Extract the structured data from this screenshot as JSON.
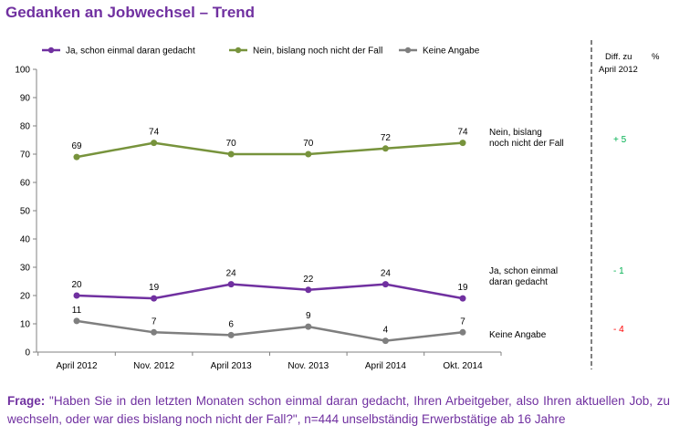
{
  "title": "Gedanken an Jobwechsel – Trend",
  "chart_data": {
    "type": "line",
    "title": "Gedanken an Jobwechsel – Trend",
    "categories": [
      "April 2012",
      "Nov. 2012",
      "April 2013",
      "Nov. 2013",
      "April 2014",
      "Okt. 2014"
    ],
    "ylim": [
      0,
      100
    ],
    "yticks": [
      0,
      10,
      20,
      30,
      40,
      50,
      60,
      70,
      80,
      90,
      100
    ],
    "grid": false,
    "legend_position": "top",
    "series": [
      {
        "name": "Ja, schon einmal daran gedacht",
        "end_label": [
          "Ja, schon einmal",
          "daran gedacht"
        ],
        "values": [
          20,
          19,
          24,
          22,
          24,
          19
        ],
        "color": "#7030a0",
        "diff": "- 1",
        "diff_color": "#00b050"
      },
      {
        "name": "Nein, bislang noch nicht der Fall",
        "end_label": [
          "Nein, bislang",
          "noch nicht der Fall"
        ],
        "values": [
          69,
          74,
          70,
          70,
          72,
          74
        ],
        "color": "#77933c",
        "diff": "+ 5",
        "diff_color": "#00b050"
      },
      {
        "name": "Keine Angabe",
        "end_label": [
          "Keine Angabe"
        ],
        "values": [
          11,
          7,
          6,
          9,
          4,
          7
        ],
        "color": "#7f7f7f",
        "diff": "- 4",
        "diff_color": "#ff0000"
      }
    ],
    "diff_header": {
      "line1": "Diff. zu",
      "unit": "%",
      "line2": "April 2012"
    }
  },
  "footnote": {
    "label": "Frage:",
    "text": "\"Haben Sie in den letzten Monaten schon einmal daran gedacht, Ihren Arbeitgeber, also Ihren aktuellen Job, zu wechseln, oder war dies bislang noch nicht der Fall?\", n=444 unselbständig Erwerbstätige ab 16 Jahre"
  }
}
